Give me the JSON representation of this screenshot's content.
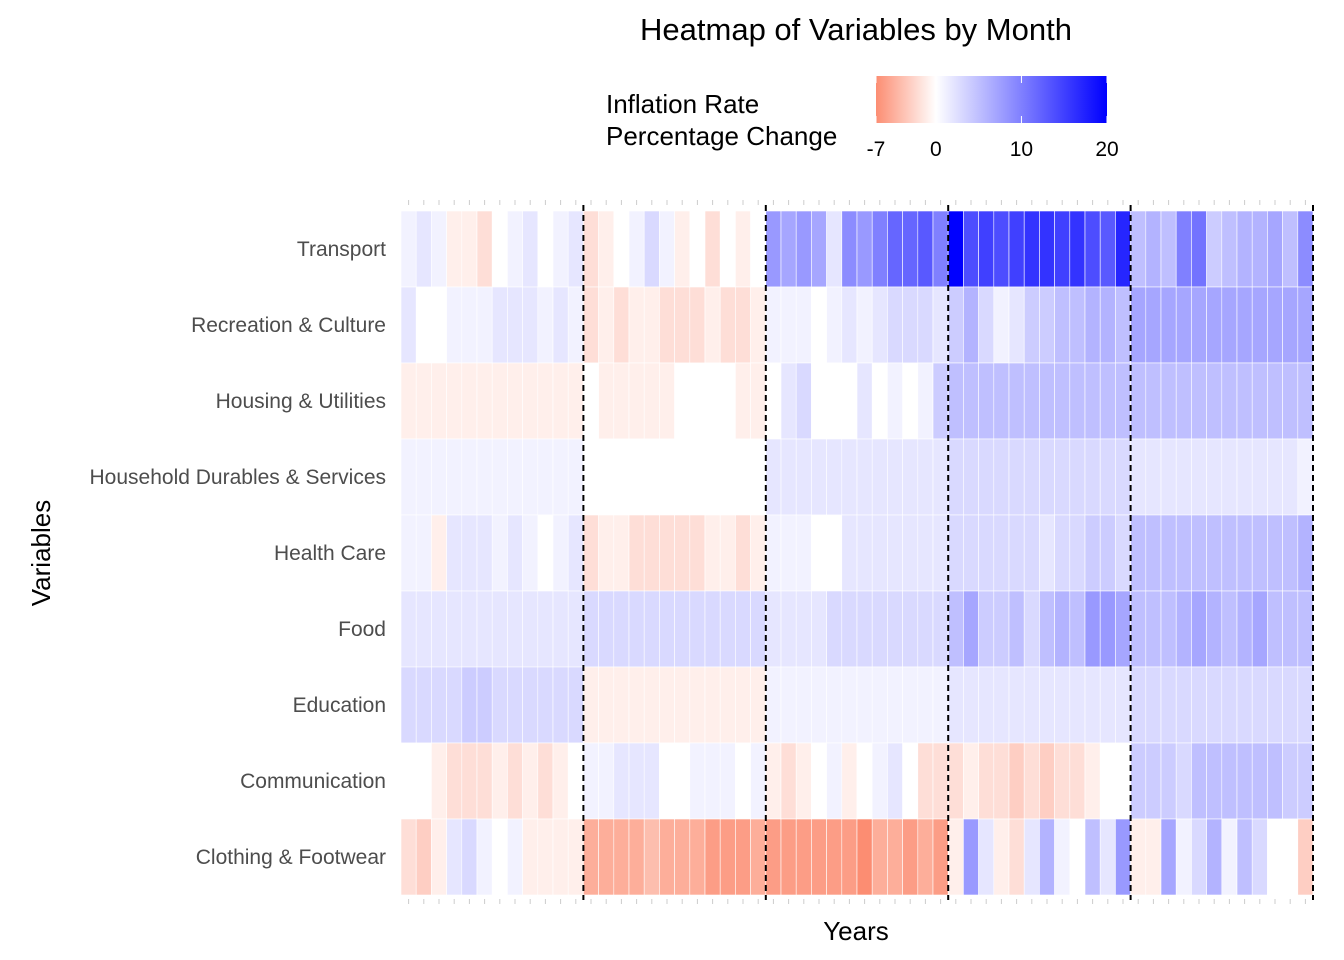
{
  "chart_data": {
    "type": "heatmap",
    "title": "Heatmap of Variables by Month",
    "xlabel": "Years",
    "ylabel": "Variables",
    "legend": {
      "title_line1": "Inflation Rate",
      "title_line2": "Percentage Change",
      "position": "top",
      "min": -7,
      "max": 20,
      "ticks": [
        -7,
        0,
        10,
        20
      ],
      "low_color": "#fc8d72",
      "mid_color": "#ffffff",
      "high_color": "#0000ff"
    },
    "x_tick_labels_shown": false,
    "months_per_segment": 12,
    "segment_dividers": "dashed black vertical line after every 12 months",
    "rows": [
      {
        "name": "Transport",
        "values": [
          1,
          2,
          1,
          -1,
          -1,
          -2,
          0,
          1,
          2,
          0,
          1,
          2,
          -2,
          -1,
          0,
          1,
          3,
          1,
          -1,
          0,
          -2,
          0,
          -1,
          0,
          8,
          7,
          8,
          7,
          2,
          9,
          8,
          10,
          12,
          12,
          13,
          10,
          20,
          14,
          15,
          14,
          15,
          16,
          16,
          15,
          16,
          14,
          13,
          17,
          5,
          6,
          5,
          10,
          11,
          4,
          5,
          6,
          6,
          7,
          5,
          9
        ]
      },
      {
        "name": "Recreation & Culture",
        "values": [
          2,
          0,
          0,
          1,
          1,
          1,
          2,
          2,
          2,
          1,
          2,
          1,
          -2,
          -1,
          -2,
          -1,
          -1,
          -2,
          -2,
          -2,
          -1,
          -2,
          -2,
          -1,
          1,
          1,
          1,
          0,
          1,
          2,
          1,
          2,
          3,
          3,
          3,
          2,
          4,
          6,
          3,
          1,
          2,
          4,
          4,
          5,
          5,
          6,
          6,
          5,
          7,
          7,
          7,
          7,
          7,
          7,
          7,
          7,
          7,
          7,
          7,
          7
        ]
      },
      {
        "name": "Housing & Utilities",
        "values": [
          -1,
          -1,
          -1,
          -1,
          -1,
          -1,
          -1,
          -1,
          -1,
          -1,
          -1,
          -1,
          0,
          -1,
          -1,
          -1,
          -1,
          -1,
          0,
          0,
          0,
          0,
          -1,
          -1,
          0,
          2,
          3,
          0,
          0,
          0,
          2,
          0,
          1,
          0,
          1,
          4,
          5,
          5,
          5,
          5,
          5,
          5,
          5,
          5,
          5,
          5,
          5,
          5,
          5,
          5,
          5,
          5,
          5,
          5,
          5,
          5,
          5,
          5,
          5,
          5
        ]
      },
      {
        "name": "Household Durables & Services",
        "values": [
          1,
          1,
          1,
          1,
          1,
          1,
          1,
          1,
          1,
          1,
          1,
          1,
          0,
          0,
          0,
          0,
          0,
          0,
          0,
          0,
          0,
          0,
          0,
          0,
          2,
          2,
          2,
          2,
          2,
          2,
          2,
          2,
          2,
          2,
          2,
          2,
          3,
          3,
          3,
          3,
          3,
          3,
          3,
          3,
          3,
          3,
          3,
          3,
          2,
          2,
          2,
          2,
          2,
          2,
          2,
          2,
          2,
          2,
          2,
          1
        ]
      },
      {
        "name": "Health Care",
        "values": [
          1,
          1,
          -1,
          2,
          2,
          2,
          1,
          2,
          1,
          0,
          1,
          2,
          -2,
          -1,
          -1,
          -2,
          -2,
          -2,
          -2,
          -2,
          -1,
          -1,
          -2,
          -1,
          1,
          1,
          1,
          0,
          0,
          2,
          2,
          2,
          2,
          2,
          2,
          2,
          3,
          3,
          3,
          3,
          3,
          3,
          2,
          3,
          3,
          4,
          4,
          3,
          5,
          5,
          5,
          5,
          5,
          5,
          5,
          5,
          5,
          5,
          5,
          6
        ]
      },
      {
        "name": "Food",
        "values": [
          2,
          2,
          2,
          2,
          2,
          2,
          2,
          2,
          2,
          2,
          2,
          2,
          3,
          3,
          3,
          3,
          3,
          3,
          3,
          3,
          3,
          3,
          3,
          3,
          2,
          2,
          2,
          2,
          3,
          3,
          3,
          3,
          3,
          3,
          3,
          3,
          5,
          7,
          4,
          4,
          5,
          3,
          5,
          6,
          5,
          8,
          8,
          7,
          5,
          5,
          5,
          6,
          7,
          6,
          5,
          6,
          7,
          5,
          5,
          5
        ]
      },
      {
        "name": "Education",
        "values": [
          3,
          3,
          3,
          3,
          4,
          4,
          3,
          3,
          3,
          3,
          3,
          3,
          -1,
          -1,
          -1,
          -1,
          -1,
          -1,
          -1,
          -1,
          -1,
          -1,
          -1,
          -1,
          1,
          1,
          1,
          1,
          1,
          1,
          1,
          1,
          1,
          1,
          1,
          1,
          2,
          2,
          2,
          2,
          2,
          2,
          2,
          2,
          2,
          2,
          2,
          2,
          3,
          3,
          3,
          3,
          3,
          3,
          3,
          3,
          3,
          3,
          3,
          3
        ]
      },
      {
        "name": "Communication",
        "values": [
          0,
          0,
          -1,
          -2,
          -2,
          -2,
          -1,
          -2,
          -1,
          -2,
          -1,
          0,
          1,
          1,
          2,
          2,
          2,
          0,
          0,
          1,
          1,
          1,
          0,
          1,
          -1,
          -2,
          -1,
          0,
          1,
          -1,
          0,
          1,
          2,
          0,
          -2,
          -2,
          -2,
          -1,
          -2,
          -2,
          -3,
          -2,
          -3,
          -2,
          -2,
          -1,
          0,
          0,
          4,
          4,
          4,
          3,
          5,
          5,
          5,
          5,
          5,
          5,
          4,
          4
        ]
      },
      {
        "name": "Clothing & Footwear",
        "values": [
          -2,
          -3,
          -1,
          2,
          3,
          1,
          0,
          1,
          -1,
          -1,
          -1,
          -1,
          -5,
          -5,
          -5,
          -5,
          -4,
          -5,
          -5,
          -5,
          -6,
          -6,
          -6,
          -5,
          -6,
          -6,
          -6,
          -6,
          -6,
          -6,
          -7,
          -5,
          -5,
          -6,
          -5,
          -6,
          -1,
          8,
          2,
          -1,
          -2,
          2,
          6,
          1,
          0,
          5,
          2,
          8,
          -1,
          -1,
          7,
          1,
          3,
          6,
          1,
          5,
          3,
          0,
          0,
          -3
        ]
      }
    ]
  }
}
